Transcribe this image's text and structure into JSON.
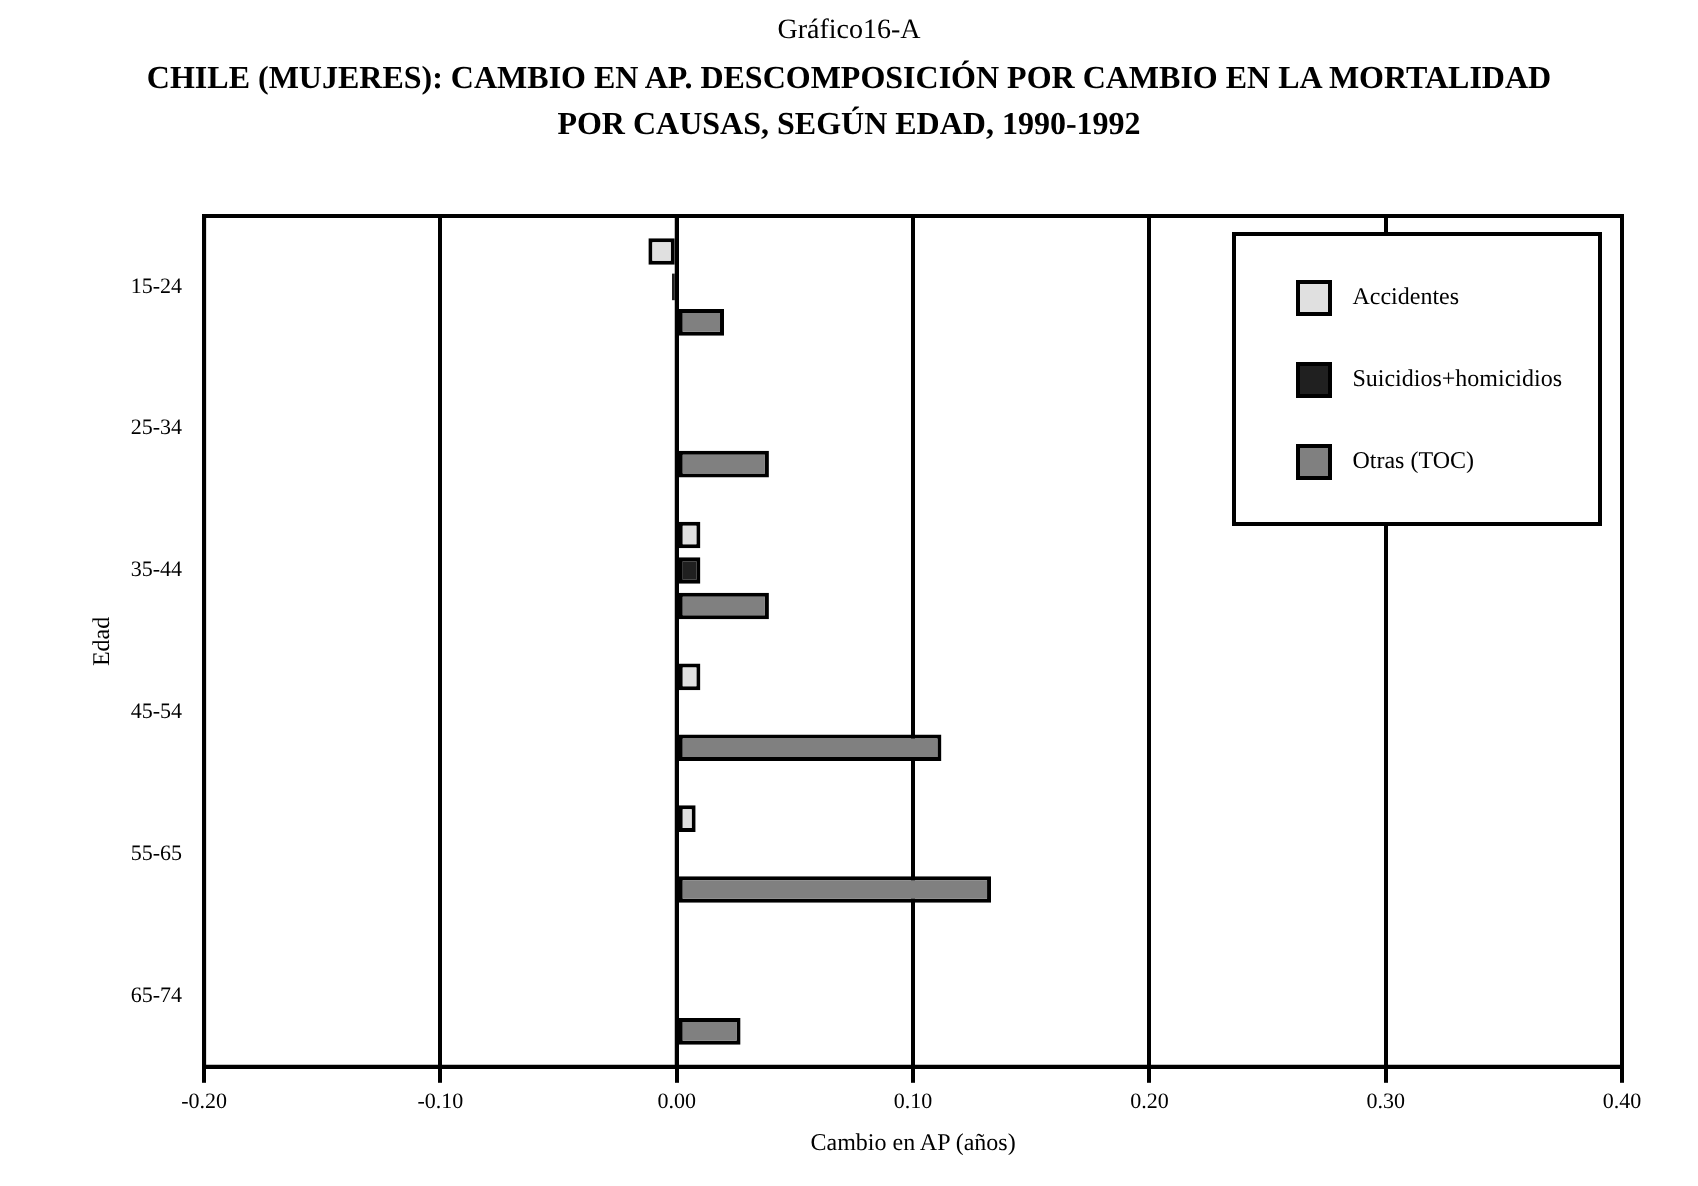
{
  "chart_data": {
    "type": "bar",
    "orientation": "horizontal",
    "title": "Gráfico16-A",
    "subtitle": "CHILE (MUJERES): CAMBIO EN AP. DESCOMPOSICIÓN POR CAMBIO EN LA MORTALIDAD POR CAUSAS, SEGÚN EDAD, 1990-1992",
    "xlabel": "Cambio en AP (años)",
    "ylabel": "Edad",
    "categories": [
      "15-24",
      "25-34",
      "35-44",
      "45-54",
      "55-65",
      "65-74"
    ],
    "series": [
      {
        "name": "Accidentes",
        "color": "#e0e0e0",
        "values": [
          -0.012,
          null,
          0.01,
          0.01,
          0.008,
          null
        ]
      },
      {
        "name": "Suicidios+homicidios",
        "color": "#202020",
        "values": [
          -0.002,
          null,
          0.01,
          null,
          null,
          null
        ]
      },
      {
        "name": "Otras (TOC)",
        "color": "#808080",
        "values": [
          0.02,
          0.039,
          0.039,
          0.112,
          0.133,
          0.027
        ]
      }
    ],
    "xlim": [
      -0.2,
      0.4
    ],
    "xticks": [
      {
        "value": -0.2,
        "label": "-0.20"
      },
      {
        "value": -0.1,
        "label": "-0.10"
      },
      {
        "value": 0,
        "label": "0.00"
      },
      {
        "value": 0.1,
        "label": "0.10"
      },
      {
        "value": 0.2,
        "label": "0.20"
      },
      {
        "value": 0.3,
        "label": "0.30"
      },
      {
        "value": 0.4,
        "label": "0.40"
      }
    ],
    "grid": "x",
    "legend": "top right"
  }
}
